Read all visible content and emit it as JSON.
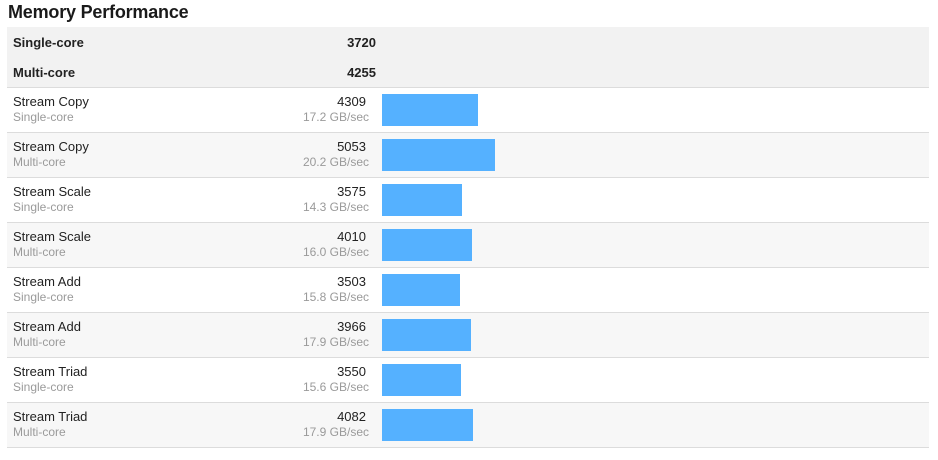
{
  "title": "Memory Performance",
  "summary": [
    {
      "label": "Single-core",
      "value": "3720"
    },
    {
      "label": "Multi-core",
      "value": "4255"
    }
  ],
  "chart_data": {
    "type": "bar",
    "orientation": "horizontal",
    "bar_color": "#55b1ff",
    "categories": [
      {
        "name": "Stream Copy",
        "mode": "Single-core",
        "score": 4309,
        "rate": "17.2 GB/sec"
      },
      {
        "name": "Stream Copy",
        "mode": "Multi-core",
        "score": 5053,
        "rate": "20.2 GB/sec"
      },
      {
        "name": "Stream Scale",
        "mode": "Single-core",
        "score": 3575,
        "rate": "14.3 GB/sec"
      },
      {
        "name": "Stream Scale",
        "mode": "Multi-core",
        "score": 4010,
        "rate": "16.0 GB/sec"
      },
      {
        "name": "Stream Add",
        "mode": "Single-core",
        "score": 3503,
        "rate": "15.8 GB/sec"
      },
      {
        "name": "Stream Add",
        "mode": "Multi-core",
        "score": 3966,
        "rate": "17.9 GB/sec"
      },
      {
        "name": "Stream Triad",
        "mode": "Single-core",
        "score": 3550,
        "rate": "15.6 GB/sec"
      },
      {
        "name": "Stream Triad",
        "mode": "Multi-core",
        "score": 4082,
        "rate": "17.9 GB/sec"
      }
    ]
  }
}
